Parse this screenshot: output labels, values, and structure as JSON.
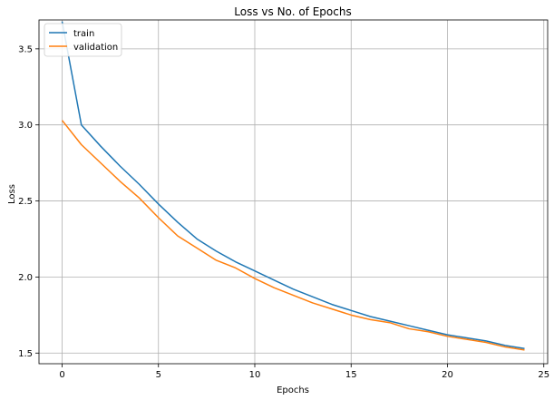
{
  "chart_data": {
    "type": "line",
    "title": "Loss vs No. of Epochs",
    "xlabel": "Epochs",
    "ylabel": "Loss",
    "xlim": [
      -1.2,
      25.2
    ],
    "ylim": [
      1.43,
      3.69
    ],
    "xticks": [
      0,
      5,
      10,
      15,
      20,
      25
    ],
    "yticks": [
      1.5,
      2.0,
      2.5,
      3.0,
      3.5
    ],
    "grid": true,
    "legend_position": "top-left",
    "x": [
      0,
      1,
      2,
      3,
      4,
      5,
      6,
      7,
      8,
      9,
      10,
      11,
      12,
      13,
      14,
      15,
      16,
      17,
      18,
      19,
      20,
      21,
      22,
      23,
      24
    ],
    "series": [
      {
        "name": "train",
        "color": "#1f77b4",
        "values": [
          3.68,
          3.0,
          2.86,
          2.73,
          2.61,
          2.48,
          2.36,
          2.25,
          2.17,
          2.1,
          2.04,
          1.98,
          1.92,
          1.87,
          1.82,
          1.78,
          1.74,
          1.71,
          1.68,
          1.65,
          1.62,
          1.6,
          1.58,
          1.55,
          1.53
        ]
      },
      {
        "name": "validation",
        "color": "#ff7f0e",
        "values": [
          3.03,
          2.87,
          2.75,
          2.63,
          2.52,
          2.39,
          2.27,
          2.19,
          2.11,
          2.06,
          1.99,
          1.93,
          1.88,
          1.83,
          1.79,
          1.75,
          1.72,
          1.7,
          1.66,
          1.64,
          1.61,
          1.59,
          1.57,
          1.54,
          1.52
        ]
      }
    ]
  }
}
